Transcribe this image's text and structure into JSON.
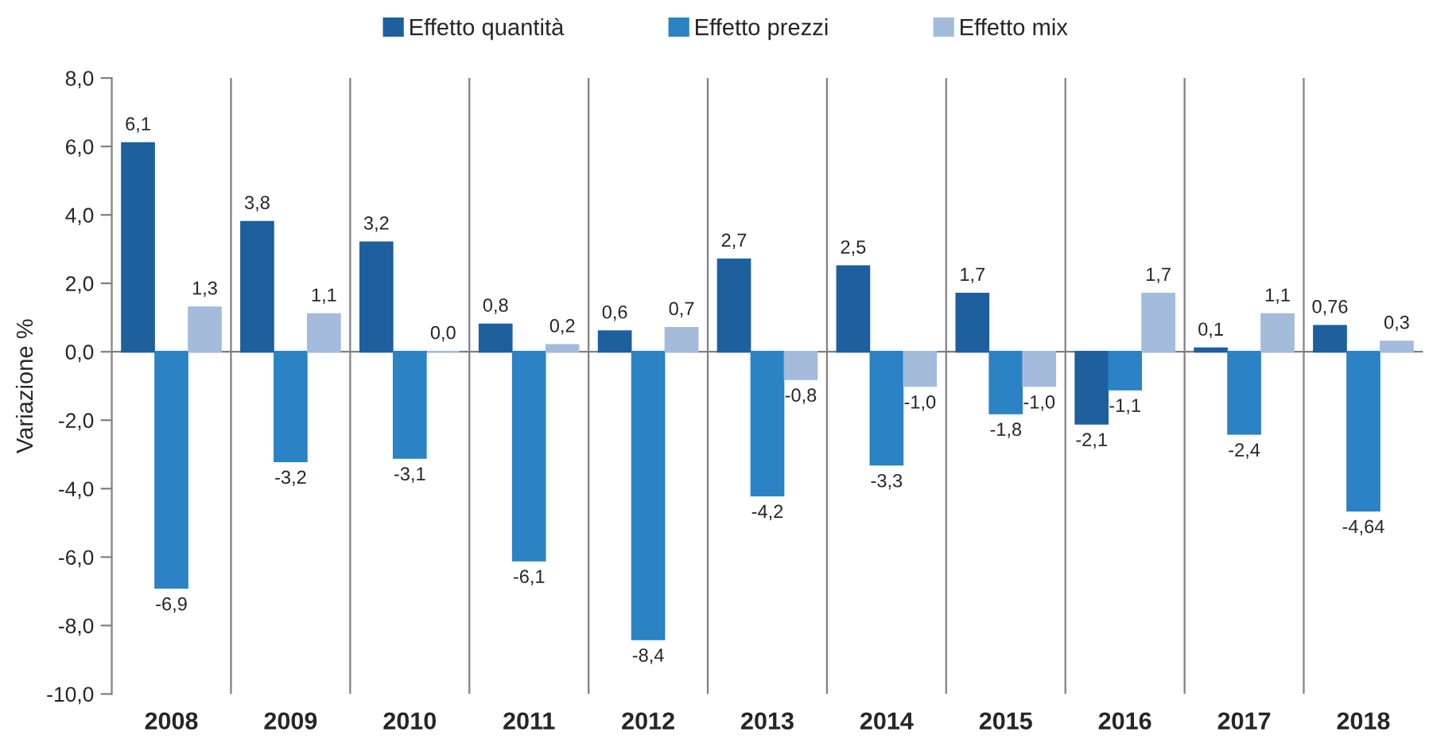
{
  "chart_data": {
    "type": "bar",
    "ylabel": "Variazione %",
    "categories": [
      "2008",
      "2009",
      "2010",
      "2011",
      "2012",
      "2013",
      "2014",
      "2015",
      "2016",
      "2017",
      "2018"
    ],
    "series": [
      {
        "name": "Effetto quantità",
        "color": "#1e5f9e",
        "values": [
          6.1,
          3.8,
          3.2,
          0.8,
          0.6,
          2.7,
          2.5,
          1.7,
          -2.1,
          0.1,
          0.76
        ],
        "value_labels": [
          "6,1",
          "3,8",
          "3,2",
          "0,8",
          "0,6",
          "2,7",
          "2,5",
          "1,7",
          "-2,1",
          "0,1",
          "0,76"
        ]
      },
      {
        "name": "Effetto prezzi",
        "color": "#2b82c4",
        "values": [
          -6.9,
          -3.2,
          -3.1,
          -6.1,
          -8.4,
          -4.2,
          -3.3,
          -1.8,
          -1.1,
          -2.4,
          -4.64
        ],
        "value_labels": [
          "-6,9",
          "-3,2",
          "-3,1",
          "-6,1",
          "-8,4",
          "-4,2",
          "-3,3",
          "-1,8",
          "-1,1",
          "-2,4",
          "-4,64"
        ]
      },
      {
        "name": "Effetto mix",
        "color": "#a4bbdb",
        "values": [
          1.3,
          1.1,
          0.0,
          0.2,
          0.7,
          -0.8,
          -1.0,
          -1.0,
          1.7,
          1.1,
          0.3
        ],
        "value_labels": [
          "1,3",
          "1,1",
          "0,0",
          "0,2",
          "0,7",
          "-0,8",
          "-1,0",
          "-1,0",
          "1,7",
          "1,1",
          "0,3"
        ]
      }
    ],
    "ylim": [
      -10,
      8
    ],
    "yticks": [
      {
        "value": -10,
        "label": "-10,0"
      },
      {
        "value": -8,
        "label": "-8,0"
      },
      {
        "value": -6,
        "label": "-6,0"
      },
      {
        "value": -4,
        "label": "-4,0"
      },
      {
        "value": -2,
        "label": "-2,0"
      },
      {
        "value": 0,
        "label": "0,0"
      },
      {
        "value": 2,
        "label": "2,0"
      },
      {
        "value": 4,
        "label": "4,0"
      },
      {
        "value": 6,
        "label": "6,0"
      },
      {
        "value": 8,
        "label": "8,0"
      }
    ],
    "ref_lines": [
      {
        "axis": "y",
        "value": 0,
        "color": "#808080"
      }
    ],
    "grid": "x",
    "legend": "top"
  }
}
